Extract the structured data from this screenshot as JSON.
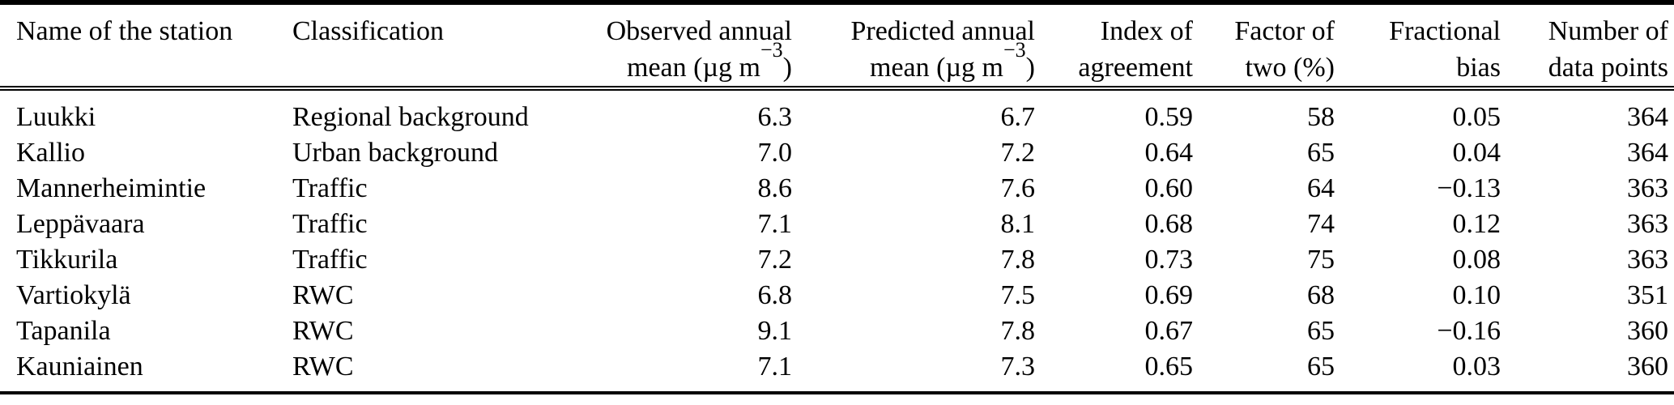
{
  "table": {
    "header": {
      "station": {
        "line1": "Name of the station"
      },
      "classification": {
        "line1": "Classification"
      },
      "observed": {
        "line1": "Observed annual",
        "unit_pre": "mean (µg m",
        "unit_sup": "−3",
        "unit_post": ")"
      },
      "predicted": {
        "line1": "Predicted annual",
        "unit_pre": "mean (µg m",
        "unit_sup": "−3",
        "unit_post": ")"
      },
      "index_of_agreement": {
        "line1": "Index of",
        "line2": "agreement"
      },
      "factor_of_two": {
        "line1": "Factor of",
        "line2": "two (%)"
      },
      "fractional_bias": {
        "line1": "Fractional",
        "line2": "bias"
      },
      "data_points": {
        "line1": "Number of",
        "line2": "data points"
      }
    },
    "rows": [
      [
        "Luukki",
        "Regional background",
        "6.3",
        "6.7",
        "0.59",
        "58",
        "0.05",
        "364"
      ],
      [
        "Kallio",
        "Urban background",
        "7.0",
        "7.2",
        "0.64",
        "65",
        "0.04",
        "364"
      ],
      [
        "Mannerheimintie",
        "Traffic",
        "8.6",
        "7.6",
        "0.60",
        "64",
        "−0.13",
        "363"
      ],
      [
        "Leppävaara",
        "Traffic",
        "7.1",
        "8.1",
        "0.68",
        "74",
        "0.12",
        "363"
      ],
      [
        "Tikkurila",
        "Traffic",
        "7.2",
        "7.8",
        "0.73",
        "75",
        "0.08",
        "363"
      ],
      [
        "Vartiokylä",
        "RWC",
        "6.8",
        "7.5",
        "0.69",
        "68",
        "0.10",
        "351"
      ],
      [
        "Tapanila",
        "RWC",
        "9.1",
        "7.8",
        "0.67",
        "65",
        "−0.16",
        "360"
      ],
      [
        "Kauniainen",
        "RWC",
        "7.1",
        "7.3",
        "0.65",
        "65",
        "0.03",
        "360"
      ]
    ]
  },
  "colors": {
    "text": "#000000",
    "rule": "#000000",
    "background": "#ffffff"
  }
}
